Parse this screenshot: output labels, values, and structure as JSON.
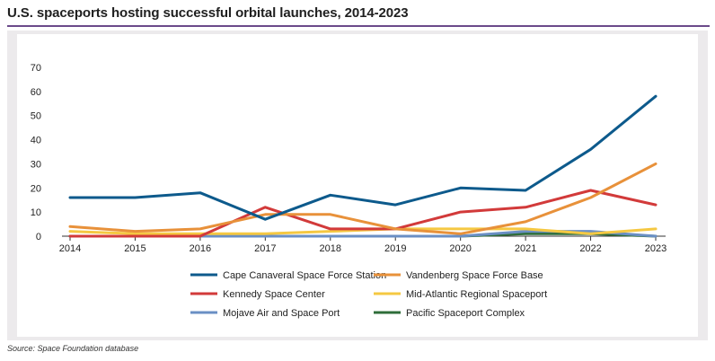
{
  "header": {
    "title": "U.S. spaceports hosting successful orbital launches, 2014-2023"
  },
  "footer": {
    "source": "Source: Space Foundation database"
  },
  "chart_data": {
    "type": "line",
    "title": "U.S. spaceports hosting successful orbital launches, 2014-2023",
    "xlabel": "",
    "ylabel": "",
    "x": [
      "2014",
      "2015",
      "2016",
      "2017",
      "2018",
      "2019",
      "2020",
      "2021",
      "2022",
      "2023"
    ],
    "yticks": [
      0,
      10,
      20,
      30,
      40,
      50,
      60,
      70
    ],
    "ylim": [
      0,
      70
    ],
    "grid": false,
    "legend_position": "bottom",
    "series": [
      {
        "name": "Cape Canaveral Space Force Station",
        "color": "#0d5a8c",
        "values": [
          16,
          16,
          18,
          7,
          17,
          13,
          20,
          19,
          36,
          58
        ]
      },
      {
        "name": "Vandenberg Space Force Base",
        "color": "#e8913a",
        "values": [
          4,
          2,
          3,
          9,
          9,
          3,
          1,
          6,
          16,
          30
        ]
      },
      {
        "name": "Kennedy Space Center",
        "color": "#d23a3a",
        "values": [
          0,
          0,
          0,
          12,
          3,
          3,
          10,
          12,
          19,
          13
        ]
      },
      {
        "name": "Mid-Atlantic Regional Spaceport",
        "color": "#f5c842",
        "values": [
          2,
          1,
          1,
          1,
          2,
          3,
          3,
          3,
          1,
          3
        ]
      },
      {
        "name": "Mojave Air and Space Port",
        "color": "#6a8fc4",
        "values": [
          0,
          0,
          0,
          0,
          0,
          0,
          0,
          2,
          2,
          0
        ]
      },
      {
        "name": "Pacific Spaceport Complex",
        "color": "#2f6e3a",
        "values": [
          0,
          0,
          0,
          0,
          0,
          0,
          0,
          1,
          1,
          0
        ]
      }
    ]
  }
}
